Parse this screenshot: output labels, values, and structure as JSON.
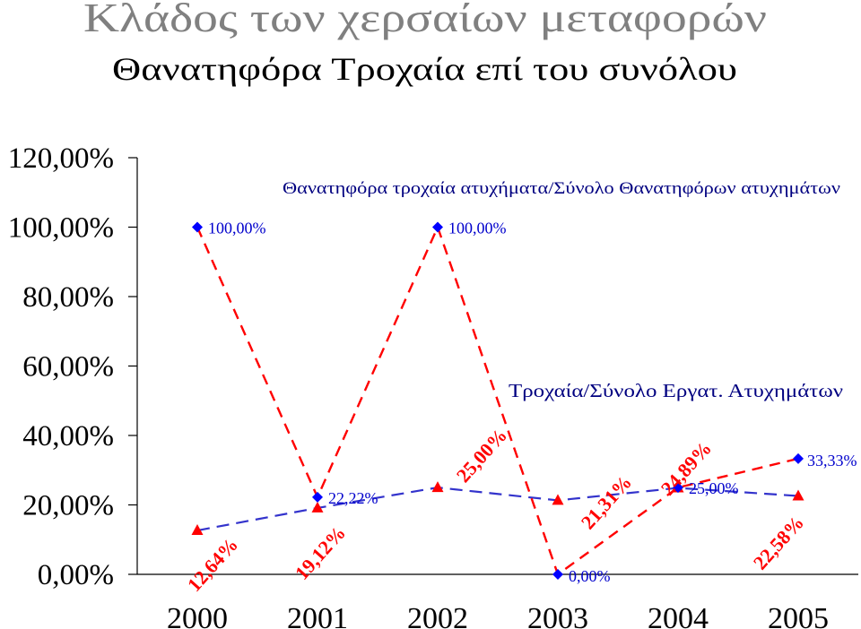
{
  "colors": {
    "title": "#808080",
    "subtitle": "#000000",
    "series_name": "#000080",
    "axis": "#000000"
  },
  "chart_data": {
    "type": "line",
    "title": "Κλάδος των χερσαίων μεταφορών",
    "subtitle": "Θανατηφόρα Τροχαία επί του συνόλου",
    "categories": [
      "2000",
      "2001",
      "2002",
      "2003",
      "2004",
      "2005"
    ],
    "ylim": [
      0,
      120
    ],
    "yticks": [
      {
        "value": 0,
        "label": "0,00%"
      },
      {
        "value": 20,
        "label": "20,00%"
      },
      {
        "value": 40,
        "label": "40,00%"
      },
      {
        "value": 60,
        "label": "60,00%"
      },
      {
        "value": 80,
        "label": "80,00%"
      },
      {
        "value": 100,
        "label": "100,00%"
      },
      {
        "value": 120,
        "label": "120,00%"
      }
    ],
    "grid": false,
    "legend": "none",
    "series": [
      {
        "name": "Θανατηφόρα τροχαία ατυχήματα/Σύνολο Θανατηφόρων ατυχημάτων",
        "values": [
          100,
          22.22,
          100,
          0,
          25,
          33.33
        ],
        "labels": [
          "100,00%",
          "22,22%",
          "100,00%",
          "0,00%",
          "25,00%",
          "33,33%"
        ],
        "marker": "diamond",
        "marker_color": "#0000FF",
        "line_color": "#FF0000",
        "line_style": "dashed",
        "label_color": "#0000CC"
      },
      {
        "name": "Τροχαία/Σύνολο Εργατ. Ατυχημάτων",
        "values": [
          12.64,
          19.12,
          25,
          21.31,
          24.89,
          22.58
        ],
        "labels": [
          "12,64%",
          "19,12%",
          "25,00%",
          "21,31%",
          "24,89%",
          "22,58%"
        ],
        "marker": "triangle",
        "marker_color": "#FF0000",
        "line_color": "#3333CC",
        "line_style": "dashed",
        "label_color": "#FF0000"
      }
    ]
  }
}
